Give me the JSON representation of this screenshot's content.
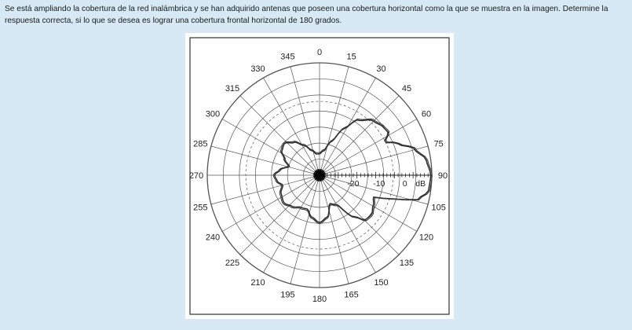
{
  "question": {
    "text": "Se está ampliando la cobertura de la red inalámbrica y se han adquirido antenas que poseen una cobertura horizontal como la que se muestra en la imagen. Determine la respuesta correcta, si lo que se desea es lograr una cobertura frontal horizontal de 180 grados."
  },
  "figure": {
    "angle_labels": [
      "0",
      "15",
      "30",
      "45",
      "60",
      "75",
      "90",
      "105",
      "120",
      "135",
      "150",
      "165",
      "180",
      "195",
      "210",
      "225",
      "240",
      "255",
      "270",
      "285",
      "300",
      "315",
      "330",
      "345"
    ],
    "scale_labels": [
      "-20",
      "-10",
      "0",
      "dB"
    ],
    "colors": {
      "grid": "#555555",
      "pattern": "#333333",
      "background": "#ffffff"
    }
  }
}
